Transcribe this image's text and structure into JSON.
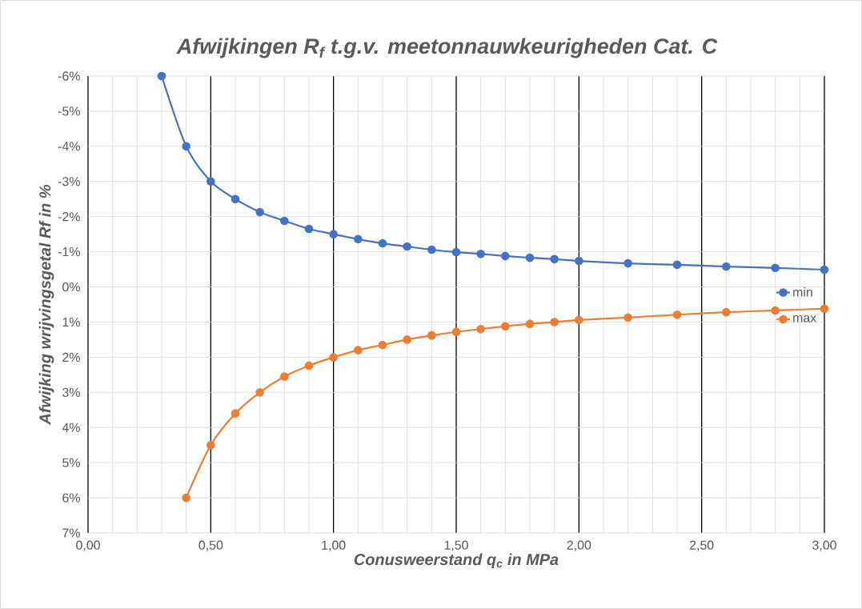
{
  "chart_data": {
    "type": "line",
    "title": "Afwijkingen R$_{f}$ t.g.v. meetonnauwkeurigheden Cat. C",
    "xlabel": "Conusweerstand q$_{c}$ in MPa",
    "ylabel": "Afwijking wrijvingsgetal Rf in %",
    "xlim": [
      0,
      3
    ],
    "ylim": [
      7,
      -6
    ],
    "xticks": [
      {
        "value": 0,
        "label": "0,00"
      },
      {
        "value": 0.5,
        "label": "0,50"
      },
      {
        "value": 1,
        "label": "1,00"
      },
      {
        "value": 1.5,
        "label": "1,50"
      },
      {
        "value": 2,
        "label": "2,00"
      },
      {
        "value": 2.5,
        "label": "2,50"
      },
      {
        "value": 3,
        "label": "3,00"
      }
    ],
    "yticks": [
      {
        "value": -6,
        "label": "-6%"
      },
      {
        "value": -5,
        "label": "-5%"
      },
      {
        "value": -4,
        "label": "-4%"
      },
      {
        "value": -3,
        "label": "-3%"
      },
      {
        "value": -2,
        "label": "-2%"
      },
      {
        "value": -1,
        "label": "-1%"
      },
      {
        "value": 0,
        "label": "0%"
      },
      {
        "value": 1,
        "label": "1%"
      },
      {
        "value": 2,
        "label": "2%"
      },
      {
        "value": 3,
        "label": "3%"
      },
      {
        "value": 4,
        "label": "4%"
      },
      {
        "value": 5,
        "label": "5%"
      },
      {
        "value": 6,
        "label": "6%"
      },
      {
        "value": 7,
        "label": "7%"
      }
    ],
    "grid": true,
    "legend": "right",
    "marker": "circle",
    "line_style": "solid",
    "x": [
      0.3,
      0.4,
      0.5,
      0.6,
      0.7,
      0.8,
      0.9,
      1.0,
      1.1,
      1.2,
      1.3,
      1.4,
      1.5,
      1.6,
      1.7,
      1.8,
      1.9,
      2.0,
      2.2,
      2.4,
      2.6,
      2.8,
      3.0
    ],
    "series": [
      {
        "name": "min",
        "color": "#4472c4",
        "values": [
          -6,
          -4,
          -3,
          -2.5,
          -2.13,
          -1.88,
          -1.65,
          -1.5,
          -1.36,
          -1.24,
          -1.15,
          -1.06,
          -0.99,
          -0.94,
          -0.88,
          -0.83,
          -0.79,
          -0.74,
          -0.67,
          -0.63,
          -0.58,
          -0.54,
          -0.49
        ]
      },
      {
        "name": "max",
        "color": "#ed7d31",
        "values": [
          null,
          6,
          4.5,
          3.6,
          3.0,
          2.55,
          2.24,
          2.0,
          1.8,
          1.65,
          1.5,
          1.38,
          1.28,
          1.2,
          1.12,
          1.05,
          1.0,
          0.94,
          0.87,
          0.79,
          0.72,
          0.67,
          0.62
        ]
      }
    ]
  }
}
